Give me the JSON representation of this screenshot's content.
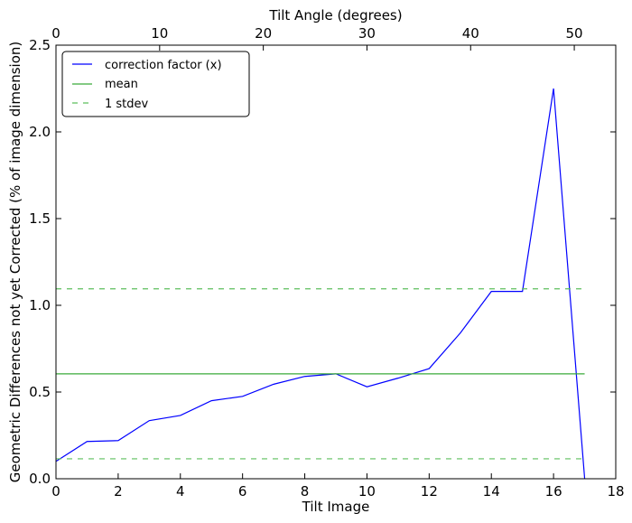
{
  "chart_data": {
    "type": "line",
    "xlabel": "Tilt Image",
    "x2label": "Tilt Angle (degrees)",
    "ylabel": "Geometric Differences not yet Corrected (% of image dimension)",
    "xlim": [
      0,
      18
    ],
    "x2lim": [
      0,
      54
    ],
    "ylim": [
      0.0,
      2.5
    ],
    "grid": false,
    "legend_position": "top-left",
    "x_ticks": [
      0,
      2,
      4,
      6,
      8,
      10,
      12,
      14,
      16,
      18
    ],
    "x_tick_labels": [
      "0",
      "2",
      "4",
      "6",
      "8",
      "10",
      "12",
      "14",
      "16",
      "18"
    ],
    "x2_ticks": [
      0,
      10,
      20,
      30,
      40,
      50
    ],
    "x2_tick_labels": [
      "0",
      "10",
      "20",
      "30",
      "40",
      "50"
    ],
    "y_ticks": [
      0.0,
      0.5,
      1.0,
      1.5,
      2.0,
      2.5
    ],
    "y_tick_labels": [
      "0.0",
      "0.5",
      "1.0",
      "1.5",
      "2.0",
      "2.5"
    ],
    "series": [
      {
        "name": "correction factor (x)",
        "color": "#0000ff",
        "style": "solid",
        "x": [
          0,
          1,
          2,
          3,
          4,
          5,
          6,
          7,
          8,
          9,
          10,
          11,
          12,
          13,
          14,
          15,
          16,
          17
        ],
        "values": [
          0.1,
          0.215,
          0.22,
          0.335,
          0.365,
          0.45,
          0.475,
          0.545,
          0.59,
          0.605,
          0.53,
          0.58,
          0.635,
          0.84,
          1.08,
          1.08,
          2.25,
          0.0
        ]
      },
      {
        "name": "mean",
        "color": "#3aaa3a",
        "style": "solid",
        "x": [
          0,
          17
        ],
        "values": [
          0.605,
          0.605
        ]
      },
      {
        "name": "1 stdev",
        "color": "#5cbf5c",
        "style": "dashed",
        "x": [
          0,
          17
        ],
        "values": [
          1.095,
          1.095
        ]
      },
      {
        "name": "",
        "color": "#5cbf5c",
        "style": "dashed",
        "x": [
          0,
          17
        ],
        "values": [
          0.115,
          0.115
        ]
      }
    ]
  }
}
